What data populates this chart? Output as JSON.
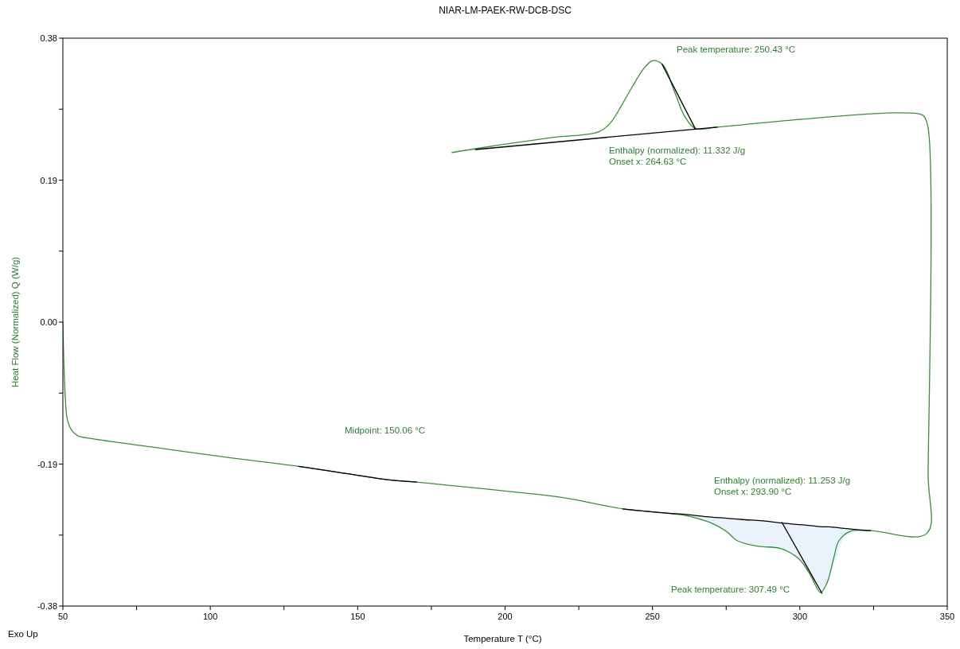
{
  "chart_data": {
    "type": "line",
    "title": "NIAR-LM-PAEK-RW-DCB-DSC",
    "xlabel": "Temperature T (°C)",
    "ylabel": "Heat Flow (Normalized) Q (W/g)",
    "xlim": [
      50,
      350
    ],
    "xticks": [
      50,
      {
        "value": 75,
        "label": null
      },
      100,
      {
        "value": 125,
        "label": null
      },
      150,
      {
        "value": 175,
        "label": null
      },
      200,
      {
        "value": 225,
        "label": null
      },
      250,
      {
        "value": 275,
        "label": null
      },
      300,
      {
        "value": 325,
        "label": null
      },
      350
    ],
    "ylim": [
      -0.38,
      0.38
    ],
    "yticks": [
      {
        "value": -0.38,
        "label": "-0.38"
      },
      {
        "value": -0.285,
        "label": null
      },
      {
        "value": -0.19,
        "label": "-0.19"
      },
      {
        "value": -0.095,
        "label": null
      },
      {
        "value": 0,
        "label": "0.00"
      },
      {
        "value": 0.095,
        "label": null
      },
      {
        "value": 0.19,
        "label": "0.19"
      },
      {
        "value": 0.285,
        "label": null
      },
      {
        "value": 0.38,
        "label": "0.38"
      }
    ],
    "grid": false,
    "marker": "none",
    "line_style": "solid",
    "series": [
      {
        "color": "#3a8f3a",
        "x": [
          50,
          50.3,
          50.8,
          51.5,
          53,
          55,
          60,
          80,
          100,
          120,
          130,
          140,
          145,
          150,
          155,
          160,
          170,
          180,
          200,
          220,
          240,
          250,
          260,
          264.6,
          270,
          275,
          279,
          286,
          293.5,
          299.7,
          303.5,
          307,
          309.2,
          311.6,
          313.2,
          317,
          324,
          343,
          343.5,
          343.5,
          342,
          340,
          331,
          299,
          272,
          264.6,
          261,
          257.6,
          253.8,
          251,
          249.5,
          246.8,
          243,
          239.5,
          236,
          232,
          216,
          198,
          182
        ],
        "values": [
          0.0,
          -0.05,
          -0.1,
          -0.13,
          -0.145,
          -0.152,
          -0.156,
          -0.167,
          -0.178,
          -0.188,
          -0.193,
          -0.199,
          -0.202,
          -0.205,
          -0.208,
          -0.211,
          -0.214,
          -0.218,
          -0.226,
          -0.235,
          -0.25,
          -0.254,
          -0.258,
          -0.262,
          -0.269,
          -0.28,
          -0.293,
          -0.3,
          -0.303,
          -0.317,
          -0.338,
          -0.362,
          -0.349,
          -0.314,
          -0.293,
          -0.28,
          -0.279,
          -0.283,
          -0.2,
          0.26,
          0.276,
          0.279,
          0.28,
          0.271,
          0.261,
          0.259,
          0.275,
          0.307,
          0.343,
          0.35,
          0.349,
          0.338,
          0.314,
          0.29,
          0.268,
          0.255,
          0.247,
          0.237,
          0.227
        ]
      },
      {
        "color": "#000000",
        "x": [
          190,
          272
        ],
        "values": [
          0.231,
          0.261
        ]
      },
      {
        "color": "#000000",
        "x": [
          253.3,
          264.63
        ],
        "values": [
          0.345,
          0.258
        ]
      },
      {
        "color": "#000000",
        "x": [
          130,
          140,
          145,
          150,
          155,
          160,
          170
        ],
        "values": [
          -0.193,
          -0.199,
          -0.202,
          -0.205,
          -0.208,
          -0.211,
          -0.214
        ]
      },
      {
        "color": "#000000",
        "x": [
          240,
          250,
          260,
          270,
          280,
          290,
          293.9,
          300,
          305,
          307.5,
          310,
          315,
          320,
          324
        ],
        "values": [
          -0.25,
          -0.254,
          -0.257,
          -0.261,
          -0.264,
          -0.267,
          -0.269,
          -0.271,
          -0.273,
          -0.274,
          -0.274,
          -0.276,
          -0.278,
          -0.279
        ],
        "upper": [
          -0.25,
          -0.254,
          -0.257,
          -0.261,
          -0.264,
          -0.267,
          -0.269,
          -0.271,
          -0.273,
          -0.274,
          -0.274,
          -0.276,
          -0.278,
          -0.279
        ],
        "lower": [
          -0.25,
          -0.254,
          -0.258,
          -0.269,
          -0.294,
          -0.302,
          -0.304,
          -0.318,
          -0.348,
          -0.362,
          -0.345,
          -0.286,
          -0.28,
          -0.279
        ]
      },
      {
        "color": "#000000",
        "x": [
          293.9,
          307.49
        ],
        "values": [
          -0.268,
          -0.363
        ]
      }
    ],
    "annotations": [
      "Peak temperature: 250.43 °C",
      "Enthalpy (normalized): 11.332 J/g\nOnset x: 264.63 °C",
      "Midpoint: 150.06 °C",
      "Enthalpy (normalized): 11.253 J/g\nOnset x: 293.90 °C",
      "Peak temperature: 307.49 °C",
      "Exo Up"
    ]
  }
}
